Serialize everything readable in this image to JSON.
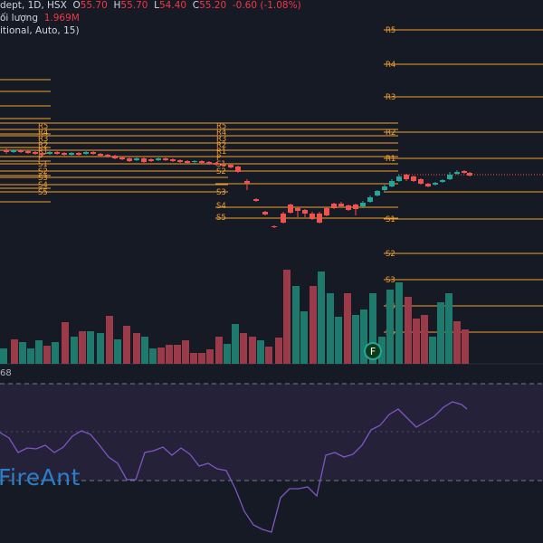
{
  "legend": {
    "symbol_suffix": "dept, 1D, HSX",
    "open_label": "O",
    "open": "55.70",
    "high_label": "H",
    "high": "55.70",
    "low_label": "L",
    "low": "54.40",
    "close_label": "C",
    "close": "55.20",
    "change": "-0.60 (-1.08%)",
    "volume_label": "ối lượng",
    "volume": "1.969M",
    "pivot_indicator": "itional, Auto, 15)"
  },
  "rsi": {
    "label": "68"
  },
  "watermark": "FireAnt",
  "event_marker": "F",
  "pivot_labels": {
    "group1": [
      "R5",
      "R4",
      "R3",
      "R2",
      "R1",
      "P",
      "S1",
      "S2",
      "S3",
      "S4",
      "S5"
    ],
    "group2": [
      "R5",
      "R4",
      "R3",
      "R2",
      "R1",
      "P",
      "S1",
      "S2",
      "S3",
      "S4",
      "S5"
    ],
    "group3": [
      "R5",
      "R4",
      "R3",
      "R2",
      "R1",
      "S1",
      "S2",
      "S3",
      "S4",
      "S5"
    ]
  },
  "colors": {
    "background": "#161a25",
    "up": "#26a69a",
    "down": "#ef5350",
    "volume_up": "#1e7a6d",
    "volume_down": "#9b3b49",
    "pivot": "#f0a030",
    "rsi_line": "#7e57c2",
    "rsi_band": "#2a2440",
    "watermark": "#2a7fc9"
  },
  "icons": {
    "event": "earnings-event-icon"
  }
}
